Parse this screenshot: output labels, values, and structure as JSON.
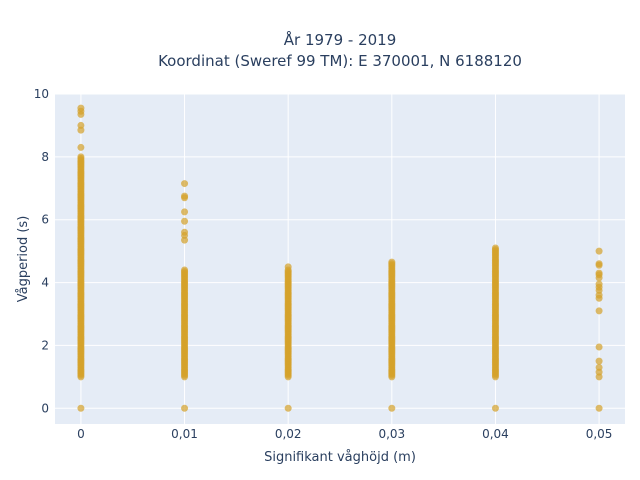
{
  "chart_data": {
    "type": "scatter",
    "title_line1": "År 1979 - 2019",
    "title_line2": "Koordinat (Sweref 99 TM): E 370001, N 6188120",
    "xlabel": "Signifikant våghöjd (m)",
    "ylabel": "Vågperiod (s)",
    "x_ticks": [
      "0",
      "0,01",
      "0,02",
      "0,03",
      "0,04",
      "0,05"
    ],
    "x_tick_values": [
      0,
      0.01,
      0.02,
      0.03,
      0.04,
      0.05
    ],
    "y_ticks": [
      "0",
      "2",
      "4",
      "6",
      "8",
      "10"
    ],
    "y_tick_values": [
      0,
      2,
      4,
      6,
      8,
      10
    ],
    "xlim": [
      -0.0025,
      0.0525
    ],
    "ylim": [
      -0.5,
      10
    ],
    "grid": true,
    "marker_color": "#D4A12A",
    "series": [
      {
        "x": 0,
        "y_ranges": [
          [
            1.0,
            8.0
          ]
        ],
        "y_points": [
          0,
          8.3,
          8.85,
          9.0,
          9.35,
          9.45,
          9.55
        ]
      },
      {
        "x": 0.01,
        "y_ranges": [
          [
            1.0,
            4.4
          ]
        ],
        "y_points": [
          0,
          5.35,
          5.5,
          5.6,
          5.95,
          6.25,
          6.7,
          6.75,
          7.15
        ]
      },
      {
        "x": 0.02,
        "y_ranges": [
          [
            1.0,
            4.4
          ]
        ],
        "y_points": [
          0,
          4.5
        ]
      },
      {
        "x": 0.03,
        "y_ranges": [
          [
            1.0,
            4.65
          ]
        ],
        "y_points": [
          0
        ]
      },
      {
        "x": 0.04,
        "y_ranges": [
          [
            1.0,
            5.1
          ]
        ],
        "y_points": [
          0
        ]
      },
      {
        "x": 0.05,
        "y_ranges": [],
        "y_points": [
          0,
          1.0,
          1.15,
          1.3,
          1.5,
          1.95,
          3.1,
          3.5,
          3.6,
          3.75,
          3.85,
          3.95,
          4.15,
          4.25,
          4.3,
          4.55,
          4.6,
          5.0
        ]
      }
    ]
  }
}
